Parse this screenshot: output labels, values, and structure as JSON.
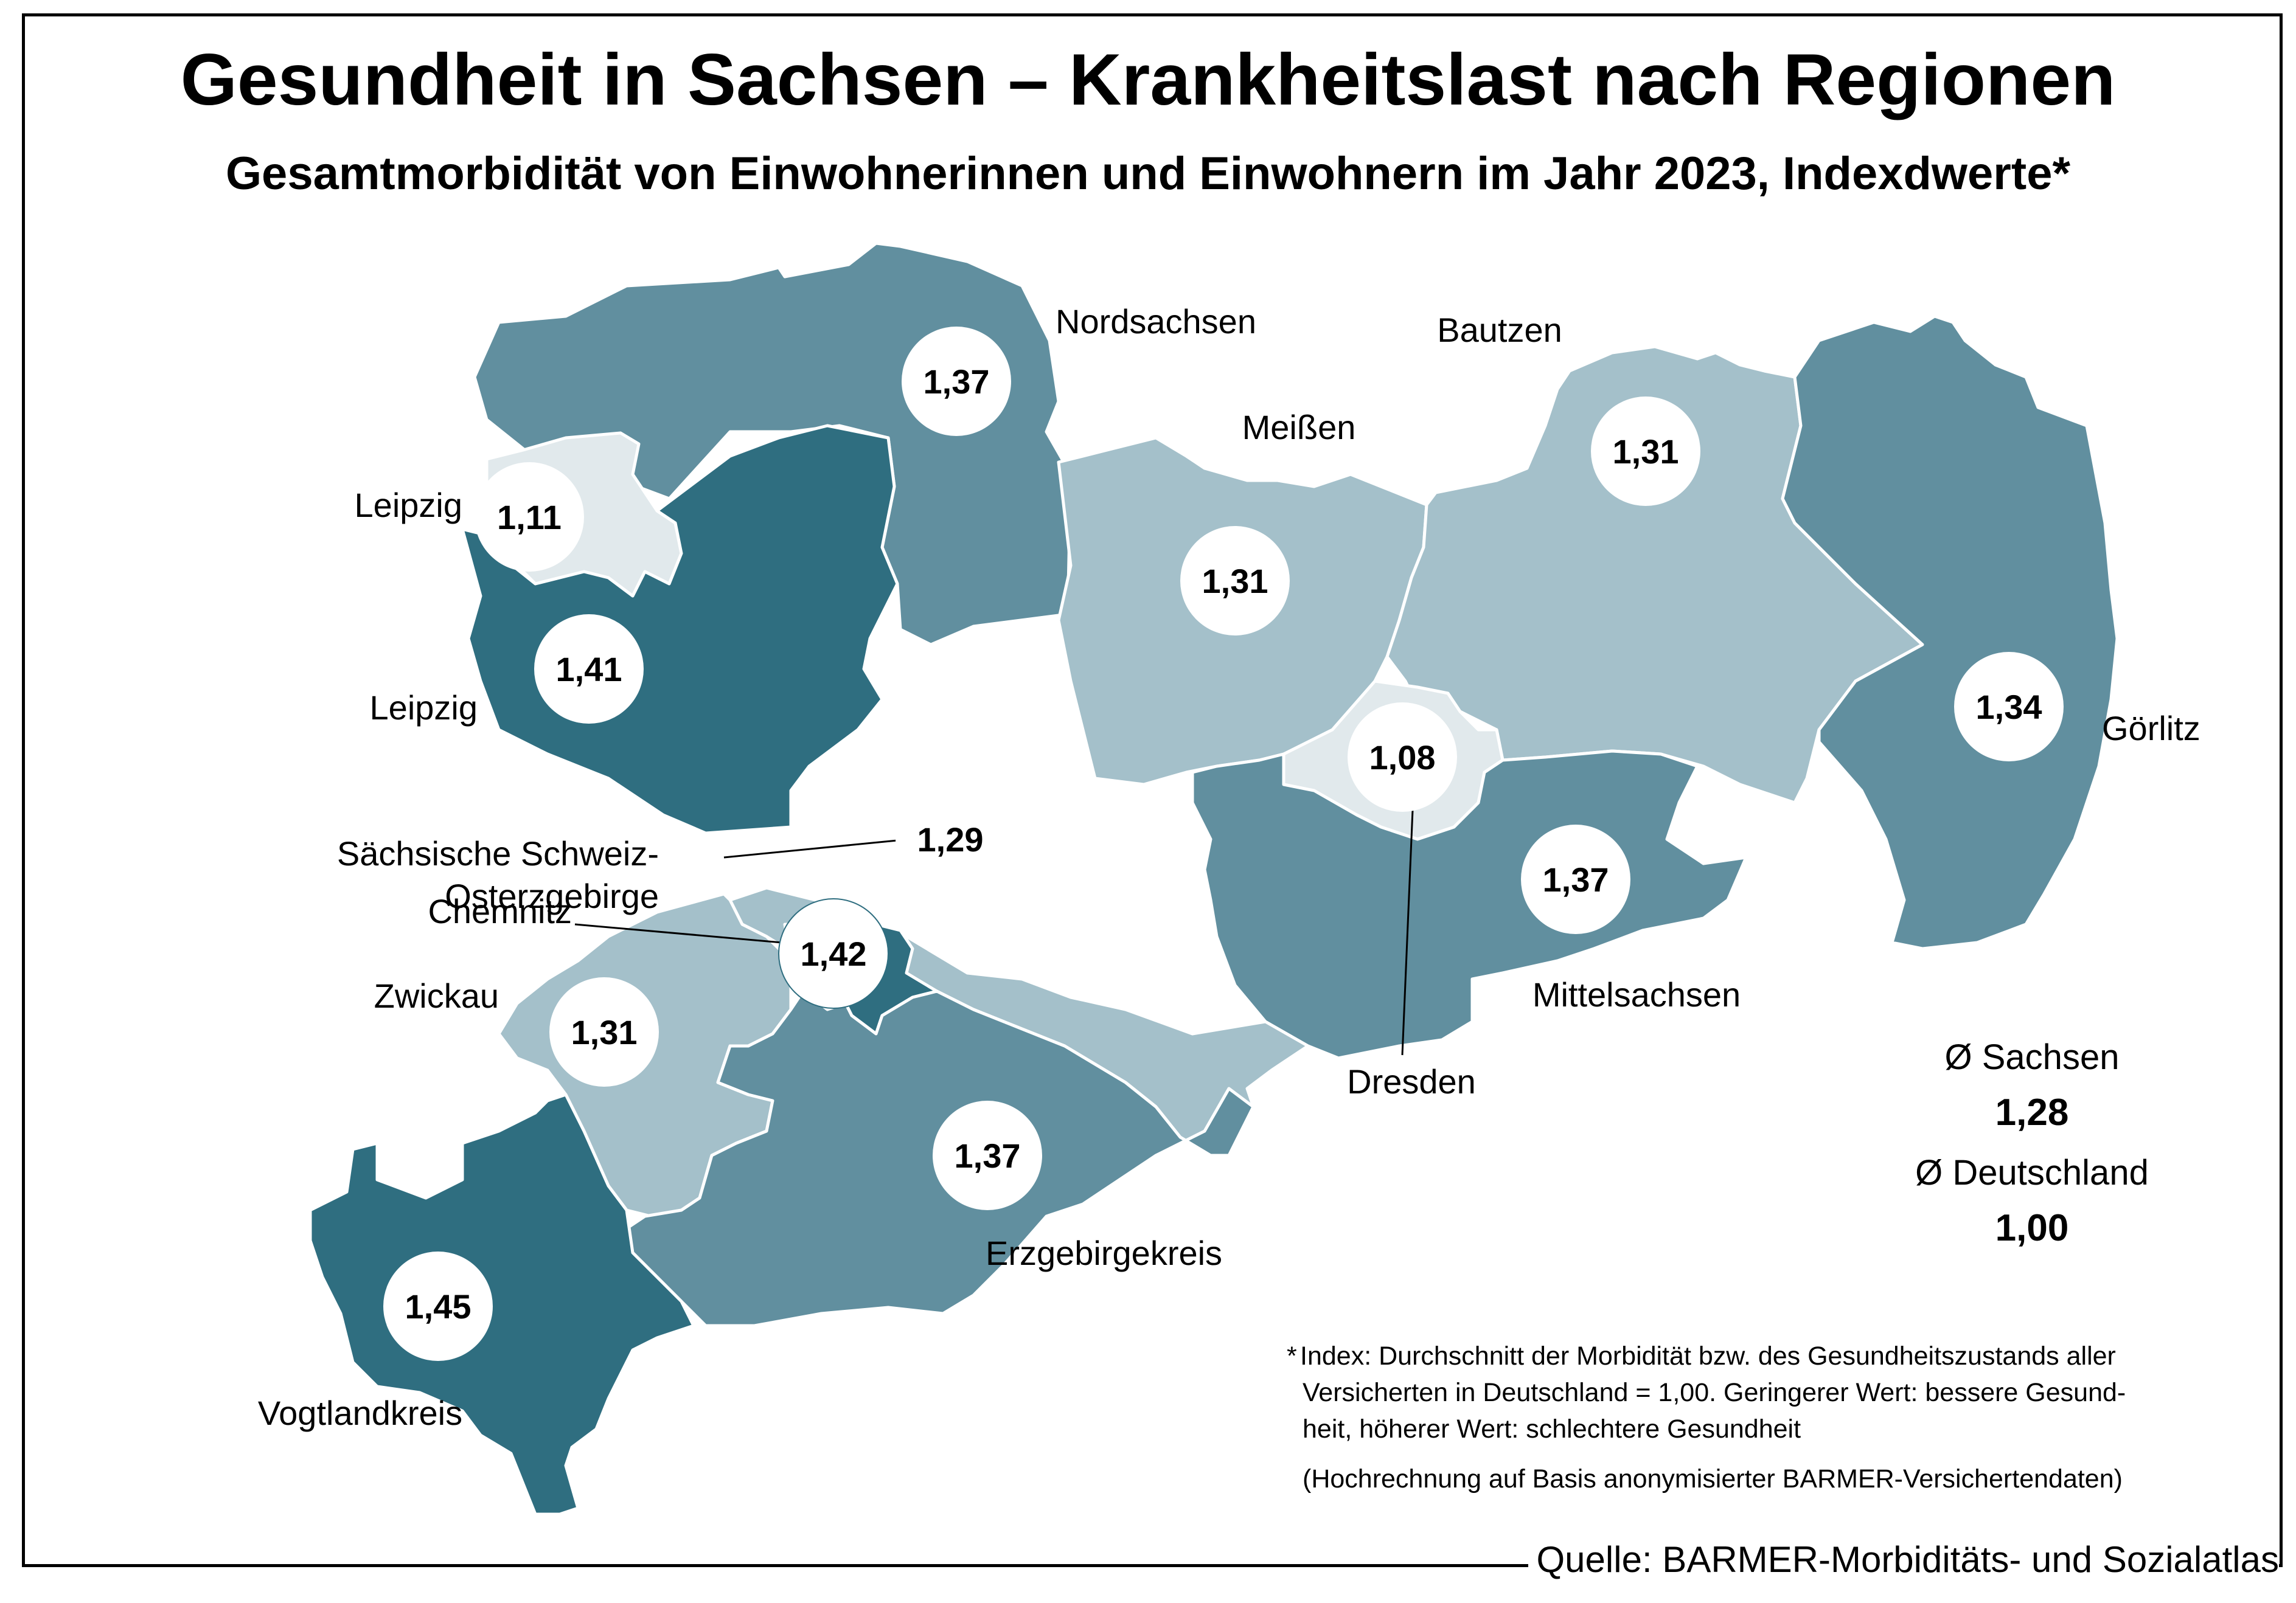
{
  "title": "Gesundheit in Sachsen – Krankheitslast nach Regionen",
  "subtitle": "Gesamtmorbidität von Einwohnerinnen und Einwohnern im Jahr 2023, Indexdwerte*",
  "colors": {
    "very_light": "#e1e9ec",
    "light": "#a4c0ca",
    "medium": "#618f9f",
    "dark": "#2f6e80",
    "border": "#ffffff"
  },
  "regions": [
    {
      "name": "Nordsachsen",
      "value": "1,37",
      "tone": "medium"
    },
    {
      "name": "Leipzig",
      "value": "1,11",
      "tone": "very_light"
    },
    {
      "name": "Leipzig",
      "value": "1,41",
      "tone": "dark"
    },
    {
      "name": "Meißen",
      "value": "1,31",
      "tone": "light"
    },
    {
      "name": "Bautzen",
      "value": "1,31",
      "tone": "light"
    },
    {
      "name": "Görlitz",
      "value": "1,34",
      "tone": "medium"
    },
    {
      "name": "Dresden",
      "value": "1,08",
      "tone": "very_light"
    },
    {
      "name": "Mittelsachsen",
      "value": "1,37",
      "tone": "medium"
    },
    {
      "name": "Sächsische Schweiz-Osterzgebirge",
      "label_lines": [
        "Sächsische Schweiz-",
        "Osterzgebirge"
      ],
      "value": "1,29",
      "tone": "light"
    },
    {
      "name": "Chemnitz",
      "value": "1,42",
      "tone": "dark"
    },
    {
      "name": "Zwickau",
      "value": "1,31",
      "tone": "light"
    },
    {
      "name": "Erzgebirgekreis",
      "value": "1,37",
      "tone": "medium"
    },
    {
      "name": "Vogtlandkreis",
      "value": "1,45",
      "tone": "dark"
    }
  ],
  "averages": {
    "sachsen_label": "Ø Sachsen",
    "sachsen_value": "1,28",
    "deutschland_label": "Ø Deutschland",
    "deutschland_value": "1,00"
  },
  "footnote": {
    "marker": "*",
    "lines": [
      "Index: Durchschnitt der Morbidität bzw. des Gesundheitszustands aller",
      "Versicherten in Deutschland = 1,00. Geringerer Wert: bessere Gesund-",
      "heit, höherer Wert: schlechtere Gesundheit"
    ],
    "note": "(Hochrechnung auf Basis anonymisierter BARMER-Versichertendaten)"
  },
  "source": "Quelle: BARMER-Morbiditäts- und Sozialatlas"
}
